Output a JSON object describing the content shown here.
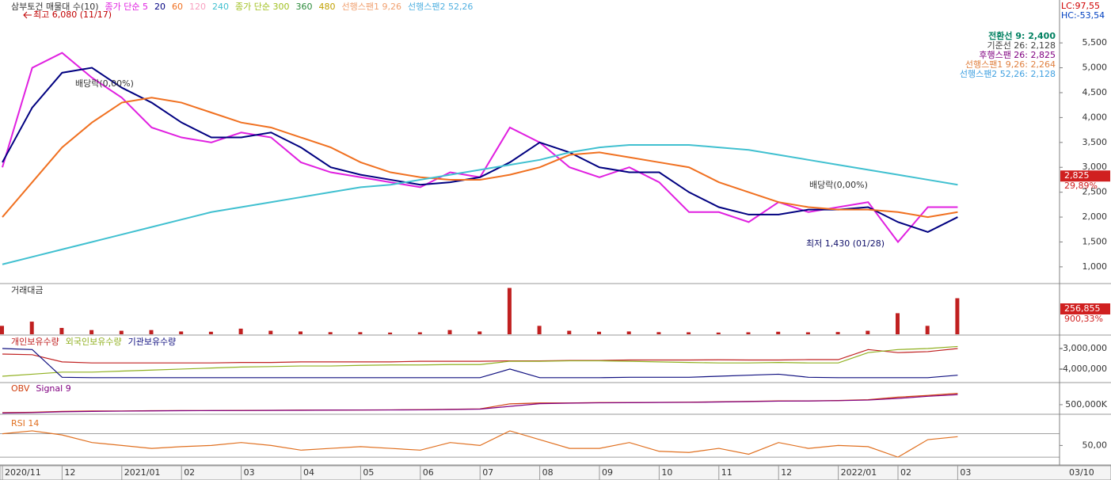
{
  "chart_data": [
    {
      "type": "line",
      "title": "삼부토건 매물대 수(10)",
      "categories": [
        "2020/11",
        null,
        "12",
        null,
        "2021/01",
        null,
        "02",
        null,
        "03",
        null,
        "04",
        null,
        "05",
        null,
        "06",
        null,
        "07",
        null,
        "08",
        null,
        "09",
        null,
        "10",
        null,
        "11",
        null,
        "12",
        null,
        "2022/01",
        null,
        "02",
        null,
        "03"
      ],
      "end_label": "03/10",
      "series": [
        {
          "name": "종가 단순 5",
          "color": "#e020e0",
          "values": [
            3000,
            5000,
            5300,
            4800,
            4400,
            3800,
            3600,
            3500,
            3700,
            3600,
            3100,
            2900,
            2800,
            2700,
            2600,
            2900,
            2800,
            3800,
            3500,
            3000,
            2800,
            3000,
            2700,
            2100,
            2100,
            1900,
            2300,
            2100,
            2200,
            2300,
            1500,
            2200,
            2200
          ]
        },
        {
          "name": "20",
          "color": "#000080",
          "values": [
            3100,
            4200,
            4900,
            5000,
            4600,
            4300,
            3900,
            3600,
            3600,
            3700,
            3400,
            3000,
            2850,
            2750,
            2650,
            2700,
            2800,
            3100,
            3500,
            3300,
            3000,
            2900,
            2900,
            2500,
            2200,
            2050,
            2050,
            2150,
            2150,
            2200,
            1900,
            1700,
            2000
          ]
        },
        {
          "name": "60",
          "color": "#f07020",
          "values": [
            2000,
            2700,
            3400,
            3900,
            4300,
            4400,
            4300,
            4100,
            3900,
            3800,
            3600,
            3400,
            3100,
            2900,
            2800,
            2750,
            2750,
            2850,
            3000,
            3250,
            3300,
            3200,
            3100,
            3000,
            2700,
            2500,
            2300,
            2200,
            2150,
            2150,
            2100,
            2000,
            2100
          ]
        },
        {
          "name": "240",
          "color": "#40c0d0",
          "values": [
            1050,
            1200,
            1350,
            1500,
            1650,
            1800,
            1950,
            2100,
            2200,
            2300,
            2400,
            2500,
            2600,
            2650,
            2750,
            2850,
            2950,
            3050,
            3150,
            3300,
            3400,
            3450,
            3450,
            3450,
            3400,
            3350,
            3250,
            3150,
            3050,
            2950,
            2850,
            2750,
            2650
          ]
        }
      ],
      "legend_only": [
        {
          "name": "120",
          "color": "#f8a0c0"
        },
        {
          "name": "종가 단순 300",
          "color": "#a0c020"
        },
        {
          "name": "360",
          "color": "#2a8a3a"
        },
        {
          "name": "480",
          "color": "#c0a000"
        },
        {
          "name": "선행스팬1 9,26",
          "color": "#f0a070"
        },
        {
          "name": "선행스팬2 52,26",
          "color": "#50b0e0"
        }
      ],
      "ylim": [
        680,
        6330
      ],
      "yticks": [
        {
          "value": 1000,
          "label": "1,000"
        },
        {
          "value": 1500,
          "label": "1,500"
        },
        {
          "value": 2000,
          "label": "2,000"
        },
        {
          "value": 2500,
          "label": "2,500"
        },
        {
          "value": 3000,
          "label": "3,000"
        },
        {
          "value": 3500,
          "label": "3,500"
        },
        {
          "value": 4000,
          "label": "4,000"
        },
        {
          "value": 4500,
          "label": "4,500"
        },
        {
          "value": 5000,
          "label": "5,000"
        },
        {
          "value": 5500,
          "label": "5,500"
        }
      ],
      "corner_labels": [
        {
          "text": "LC:97,55",
          "color": "#d00000"
        },
        {
          "text": "HC:-53,54",
          "color": "#0040c0"
        }
      ],
      "current_price": {
        "value": 2825,
        "label": "2,825",
        "change": "29,89%"
      },
      "annotations": [
        "최고 6,080 (11/17)",
        "최저 1,430 (01/28)",
        "배당락(0,00%)",
        "배당락(0,00%)"
      ],
      "info_box": [
        {
          "text": "전환선 9: 2,400",
          "color": "#008060"
        },
        {
          "text": "기준선 26: 2,128",
          "color": "#404040"
        },
        {
          "text": "후행스팬 26: 2,825",
          "color": "#800080"
        },
        {
          "text": "선행스팬1 9,26: 2,264",
          "color": "#e08040"
        },
        {
          "text": "선행스팬2 52,26: 2,128",
          "color": "#40a0e0"
        }
      ]
    },
    {
      "type": "bar",
      "title": "거래대금",
      "color": "#c02020",
      "values": [
        60000,
        90000,
        45000,
        30000,
        25000,
        30000,
        20000,
        18000,
        40000,
        25000,
        20000,
        15000,
        15000,
        12000,
        14000,
        30000,
        20000,
        330000,
        60000,
        25000,
        18000,
        20000,
        15000,
        14000,
        12000,
        14000,
        18000,
        14000,
        16000,
        25000,
        150000,
        60000,
        256855
      ],
      "value_labels_last": "256,855",
      "change": "900,33%",
      "ylim": [
        0,
        350000
      ]
    },
    {
      "type": "line",
      "series": [
        {
          "name": "개인보유수량",
          "color": "#c02020",
          "values": [
            -3270000,
            -3300000,
            -3650000,
            -3700000,
            -3700000,
            -3700000,
            -3700000,
            -3700000,
            -3680000,
            -3680000,
            -3650000,
            -3650000,
            -3650000,
            -3650000,
            -3620000,
            -3620000,
            -3620000,
            -3600000,
            -3600000,
            -3580000,
            -3580000,
            -3560000,
            -3560000,
            -3560000,
            -3550000,
            -3560000,
            -3560000,
            -3540000,
            -3540000,
            -3050000,
            -3200000,
            -3150000,
            -3000000
          ]
        },
        {
          "name": "외국인보유수량",
          "color": "#90b020",
          "values": [
            -4350000,
            -4250000,
            -4150000,
            -4150000,
            -4100000,
            -4050000,
            -4000000,
            -3950000,
            -3900000,
            -3880000,
            -3850000,
            -3850000,
            -3820000,
            -3800000,
            -3800000,
            -3780000,
            -3780000,
            -3620000,
            -3620000,
            -3600000,
            -3600000,
            -3620000,
            -3650000,
            -3680000,
            -3700000,
            -3700000,
            -3680000,
            -3700000,
            -3700000,
            -3200000,
            -3050000,
            -3000000,
            -2900000
          ]
        },
        {
          "name": "기관보유수량",
          "color": "#101080",
          "values": [
            -3000000,
            -3050000,
            -4400000,
            -4420000,
            -4420000,
            -4420000,
            -4420000,
            -4420000,
            -4420000,
            -4420000,
            -4420000,
            -4420000,
            -4420000,
            -4420000,
            -4420000,
            -4420000,
            -4420000,
            -4000000,
            -4420000,
            -4420000,
            -4420000,
            -4400000,
            -4400000,
            -4400000,
            -4350000,
            -4300000,
            -4250000,
            -4400000,
            -4420000,
            -4420000,
            -4420000,
            -4420000,
            -4300000
          ]
        }
      ],
      "ylim": [
        -4620000,
        -2420000
      ],
      "yticks": [
        {
          "value": -3000000,
          "label": "-3,000,000"
        },
        {
          "value": -4000000,
          "label": "-4,000,000"
        }
      ]
    },
    {
      "type": "line",
      "series": [
        {
          "name": "OBV",
          "color": "#d04010",
          "values": [
            405000,
            410000,
            420000,
            425000,
            425000,
            428000,
            430000,
            430000,
            432000,
            433000,
            435000,
            436000,
            437000,
            438000,
            440000,
            445000,
            450000,
            510000,
            520000,
            520000,
            525000,
            525000,
            528000,
            530000,
            535000,
            540000,
            545000,
            545000,
            550000,
            560000,
            590000,
            610000,
            635000
          ]
        },
        {
          "name": "Signal 9",
          "color": "#800080",
          "values": [
            400000,
            405000,
            415000,
            420000,
            423000,
            426000,
            428000,
            429000,
            430000,
            432000,
            433000,
            435000,
            436000,
            437000,
            438000,
            442000,
            447000,
            480000,
            512000,
            518000,
            522000,
            524000,
            526000,
            528000,
            532000,
            537000,
            542000,
            544000,
            548000,
            555000,
            575000,
            600000,
            620000
          ]
        }
      ],
      "ylim": [
        395000,
        745000
      ],
      "yticks": [
        {
          "value": 500000,
          "label": "500,000K"
        }
      ]
    },
    {
      "type": "line",
      "series": [
        {
          "name": "RSI 14",
          "color": "#e07020",
          "values": [
            70,
            75,
            68,
            55,
            50,
            45,
            48,
            50,
            55,
            50,
            42,
            45,
            48,
            45,
            42,
            55,
            50,
            75,
            60,
            45,
            45,
            55,
            40,
            38,
            45,
            35,
            55,
            45,
            50,
            48,
            30,
            60,
            65
          ]
        }
      ],
      "ylim": [
        18,
        98
      ],
      "guides": [
        30,
        70
      ],
      "yticks": [
        {
          "value": 50,
          "label": "50,00"
        }
      ]
    }
  ]
}
